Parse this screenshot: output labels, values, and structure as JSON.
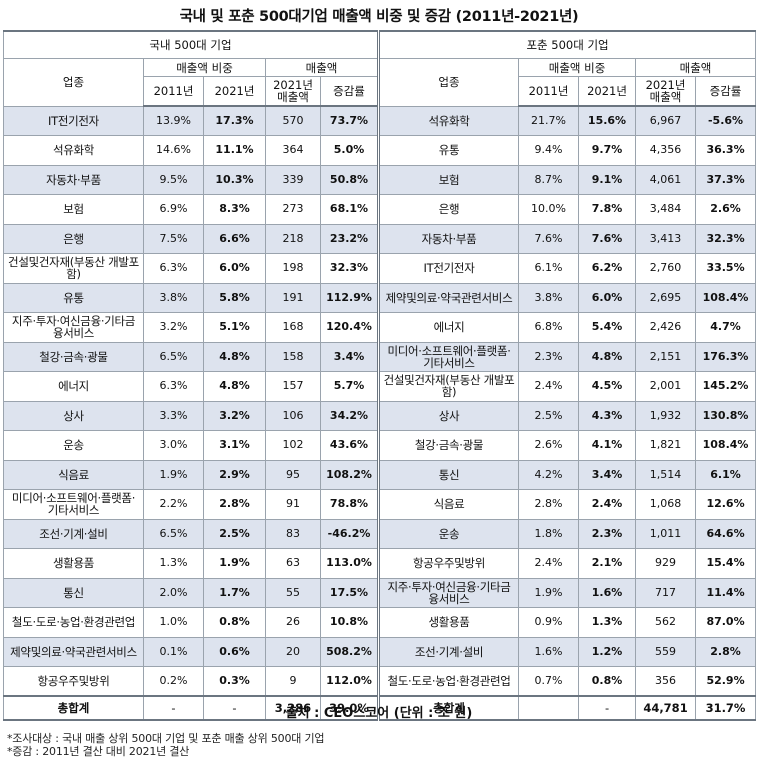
{
  "title": "국내 및 포춘 500대기업 매출액 비중 및 증감 (2011년-2021년)",
  "left_group": "국내 500대 기업",
  "right_group": "포춘 500대 기업",
  "headers": {
    "industry": "업종",
    "share": "매출액 비중",
    "sales": "매출액",
    "y2011": "2011년",
    "y2021": "2021년",
    "sales2021": "2021년 매출액",
    "change": "증감률"
  },
  "left_rows": [
    {
      "name": "IT전기전자",
      "s2011": "13.9%",
      "s2021": "17.3%",
      "sales": "570",
      "chg": "73.7%"
    },
    {
      "name": "석유화학",
      "s2011": "14.6%",
      "s2021": "11.1%",
      "sales": "364",
      "chg": "5.0%"
    },
    {
      "name": "자동차·부품",
      "s2011": "9.5%",
      "s2021": "10.3%",
      "sales": "339",
      "chg": "50.8%"
    },
    {
      "name": "보험",
      "s2011": "6.9%",
      "s2021": "8.3%",
      "sales": "273",
      "chg": "68.1%"
    },
    {
      "name": "은행",
      "s2011": "7.5%",
      "s2021": "6.6%",
      "sales": "218",
      "chg": "23.2%"
    },
    {
      "name": "건설및건자재(부동산 개발포함)",
      "s2011": "6.3%",
      "s2021": "6.0%",
      "sales": "198",
      "chg": "32.3%"
    },
    {
      "name": "유통",
      "s2011": "3.8%",
      "s2021": "5.8%",
      "sales": "191",
      "chg": "112.9%"
    },
    {
      "name": "지주·투자·여신금융·기타금융서비스",
      "s2011": "3.2%",
      "s2021": "5.1%",
      "sales": "168",
      "chg": "120.4%"
    },
    {
      "name": "철강·금속·광물",
      "s2011": "6.5%",
      "s2021": "4.8%",
      "sales": "158",
      "chg": "3.4%"
    },
    {
      "name": "에너지",
      "s2011": "6.3%",
      "s2021": "4.8%",
      "sales": "157",
      "chg": "5.7%"
    },
    {
      "name": "상사",
      "s2011": "3.3%",
      "s2021": "3.2%",
      "sales": "106",
      "chg": "34.2%"
    },
    {
      "name": "운송",
      "s2011": "3.0%",
      "s2021": "3.1%",
      "sales": "102",
      "chg": "43.6%"
    },
    {
      "name": "식음료",
      "s2011": "1.9%",
      "s2021": "2.9%",
      "sales": "95",
      "chg": "108.2%"
    },
    {
      "name": "미디어·소프트웨어·플랫폼·기타서비스",
      "s2011": "2.2%",
      "s2021": "2.8%",
      "sales": "91",
      "chg": "78.8%"
    },
    {
      "name": "조선·기계·설비",
      "s2011": "6.5%",
      "s2021": "2.5%",
      "sales": "83",
      "chg": "-46.2%"
    },
    {
      "name": "생활용품",
      "s2011": "1.3%",
      "s2021": "1.9%",
      "sales": "63",
      "chg": "113.0%"
    },
    {
      "name": "통신",
      "s2011": "2.0%",
      "s2021": "1.7%",
      "sales": "55",
      "chg": "17.5%"
    },
    {
      "name": "철도·도로·농업·환경관련업",
      "s2011": "1.0%",
      "s2021": "0.8%",
      "sales": "26",
      "chg": "10.8%"
    },
    {
      "name": "제약및의료·약국관련서비스",
      "s2011": "0.1%",
      "s2021": "0.6%",
      "sales": "20",
      "chg": "508.2%"
    },
    {
      "name": "항공우주및방위",
      "s2011": "0.2%",
      "s2021": "0.3%",
      "sales": "9",
      "chg": "112.0%"
    }
  ],
  "right_rows": [
    {
      "name": "석유화학",
      "s2011": "21.7%",
      "s2021": "15.6%",
      "sales": "6,967",
      "chg": "-5.6%"
    },
    {
      "name": "유통",
      "s2011": "9.4%",
      "s2021": "9.7%",
      "sales": "4,356",
      "chg": "36.3%"
    },
    {
      "name": "보험",
      "s2011": "8.7%",
      "s2021": "9.1%",
      "sales": "4,061",
      "chg": "37.3%"
    },
    {
      "name": "은행",
      "s2011": "10.0%",
      "s2021": "7.8%",
      "sales": "3,484",
      "chg": "2.6%"
    },
    {
      "name": "자동차·부품",
      "s2011": "7.6%",
      "s2021": "7.6%",
      "sales": "3,413",
      "chg": "32.3%"
    },
    {
      "name": "IT전기전자",
      "s2011": "6.1%",
      "s2021": "6.2%",
      "sales": "2,760",
      "chg": "33.5%"
    },
    {
      "name": "제약및의료·약국관련서비스",
      "s2011": "3.8%",
      "s2021": "6.0%",
      "sales": "2,695",
      "chg": "108.4%"
    },
    {
      "name": "에너지",
      "s2011": "6.8%",
      "s2021": "5.4%",
      "sales": "2,426",
      "chg": "4.7%"
    },
    {
      "name": "미디어·소프트웨어·플랫폼·기타서비스",
      "s2011": "2.3%",
      "s2021": "4.8%",
      "sales": "2,151",
      "chg": "176.3%"
    },
    {
      "name": "건설및건자재(부동산 개발포함)",
      "s2011": "2.4%",
      "s2021": "4.5%",
      "sales": "2,001",
      "chg": "145.2%"
    },
    {
      "name": "상사",
      "s2011": "2.5%",
      "s2021": "4.3%",
      "sales": "1,932",
      "chg": "130.8%"
    },
    {
      "name": "철강·금속·광물",
      "s2011": "2.6%",
      "s2021": "4.1%",
      "sales": "1,821",
      "chg": "108.4%"
    },
    {
      "name": "통신",
      "s2011": "4.2%",
      "s2021": "3.4%",
      "sales": "1,514",
      "chg": "6.1%"
    },
    {
      "name": "식음료",
      "s2011": "2.8%",
      "s2021": "2.4%",
      "sales": "1,068",
      "chg": "12.6%"
    },
    {
      "name": "운송",
      "s2011": "1.8%",
      "s2021": "2.3%",
      "sales": "1,011",
      "chg": "64.6%"
    },
    {
      "name": "항공우주및방위",
      "s2011": "2.4%",
      "s2021": "2.1%",
      "sales": "929",
      "chg": "15.4%"
    },
    {
      "name": "지주·투자·여신금융·기타금융서비스",
      "s2011": "1.9%",
      "s2021": "1.6%",
      "sales": "717",
      "chg": "11.4%"
    },
    {
      "name": "생활용품",
      "s2011": "0.9%",
      "s2021": "1.3%",
      "sales": "562",
      "chg": "87.0%"
    },
    {
      "name": "조선·기계·설비",
      "s2011": "1.6%",
      "s2021": "1.2%",
      "sales": "559",
      "chg": "2.8%"
    },
    {
      "name": "철도·도로·농업·환경관련업",
      "s2011": "0.7%",
      "s2021": "0.8%",
      "sales": "356",
      "chg": "52.9%"
    }
  ],
  "totals": {
    "label": "총합계",
    "left": {
      "s2011": "-",
      "s2021": "-",
      "sales": "3,286",
      "chg": "39.0%"
    },
    "right": {
      "s2011": "",
      "s2021": "-",
      "sales": "44,781",
      "chg": "31.7%"
    }
  },
  "source": "출처 : CEO스코어 (단위 : 조 원)",
  "notes": [
    "*조사대상 : 국내 매출 상위 500대 기업 및 포춘 매출 상위 500대 기업",
    "*증감 : 2011년 결산 대비 2021년 결산"
  ],
  "colors": {
    "row_shade": "#dde3ee",
    "border": "#9aa3ad"
  }
}
